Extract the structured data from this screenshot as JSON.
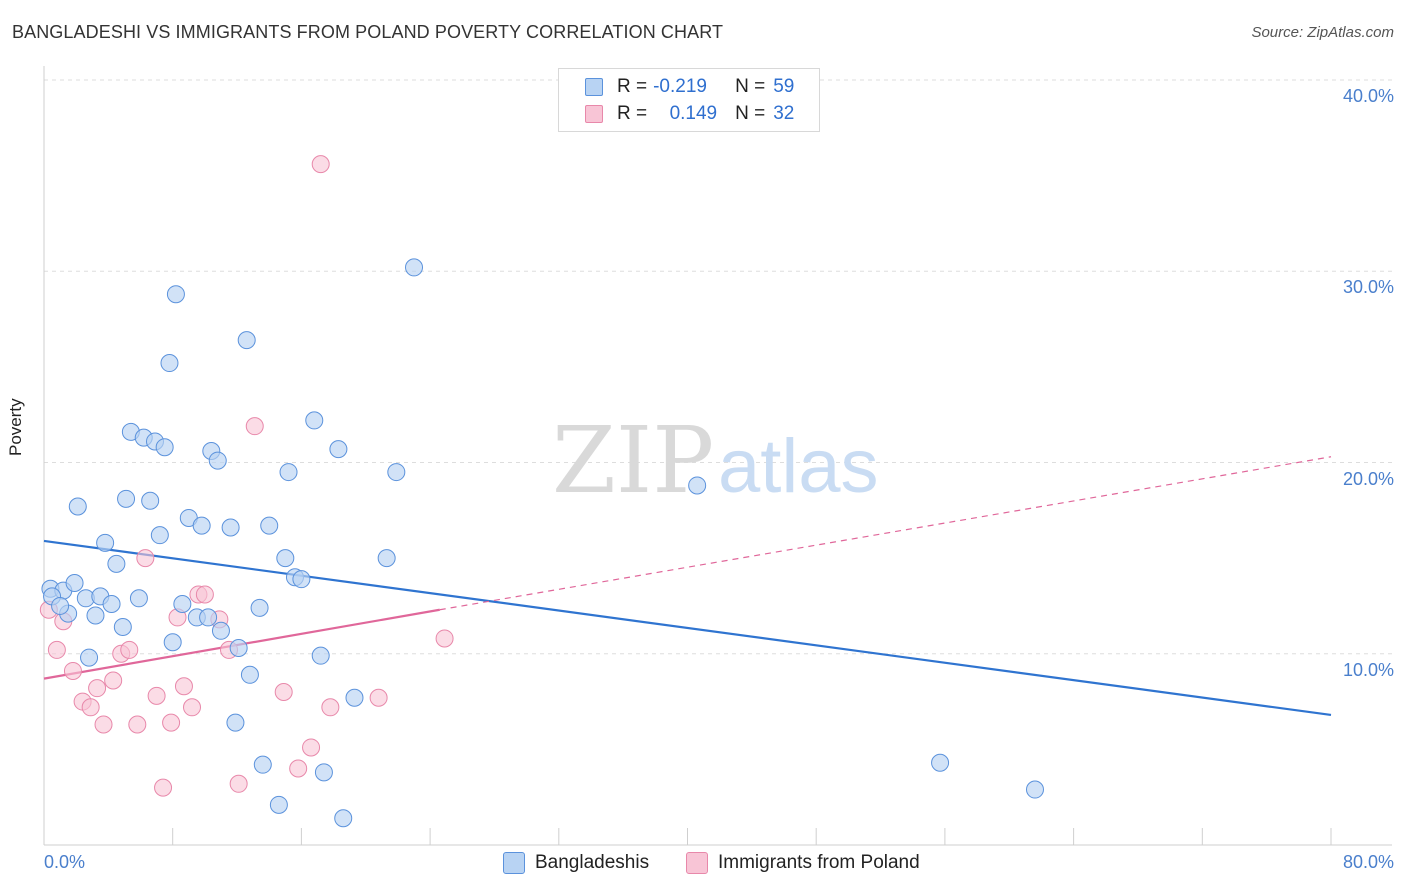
{
  "title": "BANGLADESHI VS IMMIGRANTS FROM POLAND POVERTY CORRELATION CHART",
  "source": "Source: ZipAtlas.com",
  "watermark": {
    "zip": "ZIP",
    "atlas": "atlas"
  },
  "legend": {
    "rows": [
      {
        "r_label": "R =",
        "r_value": "-0.219",
        "n_label": "N =",
        "n_value": "59"
      },
      {
        "r_label": "R =",
        "r_value": "0.149",
        "n_label": "N =",
        "n_value": "32"
      }
    ]
  },
  "colors": {
    "bangladeshi_fill": "#b8d3f3",
    "bangladeshi_stroke": "#5b92dc",
    "bangladeshi_line": "#2f74d0",
    "poland_fill": "#f8c5d6",
    "poland_stroke": "#e888aa",
    "poland_line": "#e0679a",
    "tick_text": "#4a7fcc",
    "grid": "#dddddd"
  },
  "chart_data": {
    "type": "scatter",
    "title": "BANGLADESHI VS IMMIGRANTS FROM POLAND POVERTY CORRELATION CHART",
    "xlabel": "",
    "ylabel": "Poverty",
    "xlim": [
      0,
      80
    ],
    "ylim": [
      0,
      40
    ],
    "x_ticks": [
      "0.0%",
      "80.0%"
    ],
    "y_ticks": [
      "10.0%",
      "20.0%",
      "30.0%",
      "40.0%"
    ],
    "y_tick_values": [
      10,
      20,
      30,
      40
    ],
    "grid": true,
    "legend_position": "bottom",
    "series": [
      {
        "name": "Bangladeshis",
        "r": -0.219,
        "n": 59,
        "trend": {
          "x": [
            0,
            80
          ],
          "y": [
            15.9,
            6.8
          ]
        },
        "points": [
          [
            0.4,
            13.4
          ],
          [
            1.2,
            13.3
          ],
          [
            1.5,
            12.1
          ],
          [
            1.9,
            13.7
          ],
          [
            2.1,
            17.7
          ],
          [
            2.6,
            12.9
          ],
          [
            2.8,
            9.8
          ],
          [
            3.2,
            12.0
          ],
          [
            3.5,
            13.0
          ],
          [
            3.8,
            15.8
          ],
          [
            4.2,
            12.6
          ],
          [
            4.5,
            14.7
          ],
          [
            4.9,
            11.4
          ],
          [
            5.1,
            18.1
          ],
          [
            5.4,
            21.6
          ],
          [
            5.9,
            12.9
          ],
          [
            6.2,
            21.3
          ],
          [
            6.6,
            18.0
          ],
          [
            6.9,
            21.1
          ],
          [
            7.2,
            16.2
          ],
          [
            7.5,
            20.8
          ],
          [
            7.8,
            25.2
          ],
          [
            8.0,
            10.6
          ],
          [
            8.2,
            28.8
          ],
          [
            8.6,
            12.6
          ],
          [
            9.0,
            17.1
          ],
          [
            9.5,
            11.9
          ],
          [
            9.8,
            16.7
          ],
          [
            10.2,
            11.9
          ],
          [
            10.4,
            20.6
          ],
          [
            10.8,
            20.1
          ],
          [
            11.0,
            11.2
          ],
          [
            11.6,
            16.6
          ],
          [
            11.9,
            6.4
          ],
          [
            12.1,
            10.3
          ],
          [
            12.6,
            26.4
          ],
          [
            12.8,
            8.9
          ],
          [
            13.4,
            12.4
          ],
          [
            13.6,
            4.2
          ],
          [
            14.0,
            16.7
          ],
          [
            14.6,
            2.1
          ],
          [
            15.0,
            15.0
          ],
          [
            15.2,
            19.5
          ],
          [
            15.6,
            14.0
          ],
          [
            16.0,
            13.9
          ],
          [
            16.8,
            22.2
          ],
          [
            17.2,
            9.9
          ],
          [
            17.4,
            3.8
          ],
          [
            18.3,
            20.7
          ],
          [
            18.6,
            1.4
          ],
          [
            19.3,
            7.7
          ],
          [
            21.3,
            15.0
          ],
          [
            21.9,
            19.5
          ],
          [
            23.0,
            30.2
          ],
          [
            40.6,
            18.8
          ],
          [
            55.7,
            4.3
          ],
          [
            61.6,
            2.9
          ],
          [
            0.5,
            13.0
          ],
          [
            1.0,
            12.5
          ]
        ]
      },
      {
        "name": "Immigrants from Poland",
        "r": 0.149,
        "n": 32,
        "trend": {
          "x": [
            0,
            24.6
          ],
          "y": [
            8.7,
            12.3
          ],
          "dashed_to": [
            80,
            20.3
          ]
        },
        "points": [
          [
            0.3,
            12.3
          ],
          [
            0.8,
            10.2
          ],
          [
            1.2,
            11.7
          ],
          [
            1.8,
            9.1
          ],
          [
            2.4,
            7.5
          ],
          [
            2.9,
            7.2
          ],
          [
            3.3,
            8.2
          ],
          [
            3.7,
            6.3
          ],
          [
            4.3,
            8.6
          ],
          [
            4.8,
            10.0
          ],
          [
            5.3,
            10.2
          ],
          [
            5.8,
            6.3
          ],
          [
            6.3,
            15.0
          ],
          [
            7.0,
            7.8
          ],
          [
            7.4,
            3.0
          ],
          [
            7.9,
            6.4
          ],
          [
            8.3,
            11.9
          ],
          [
            8.7,
            8.3
          ],
          [
            9.2,
            7.2
          ],
          [
            9.6,
            13.1
          ],
          [
            10.0,
            13.1
          ],
          [
            10.9,
            11.8
          ],
          [
            11.5,
            10.2
          ],
          [
            12.1,
            3.2
          ],
          [
            13.1,
            21.9
          ],
          [
            14.9,
            8.0
          ],
          [
            15.8,
            4.0
          ],
          [
            16.6,
            5.1
          ],
          [
            17.2,
            35.6
          ],
          [
            17.8,
            7.2
          ],
          [
            20.8,
            7.7
          ],
          [
            24.9,
            10.8
          ]
        ]
      }
    ]
  }
}
